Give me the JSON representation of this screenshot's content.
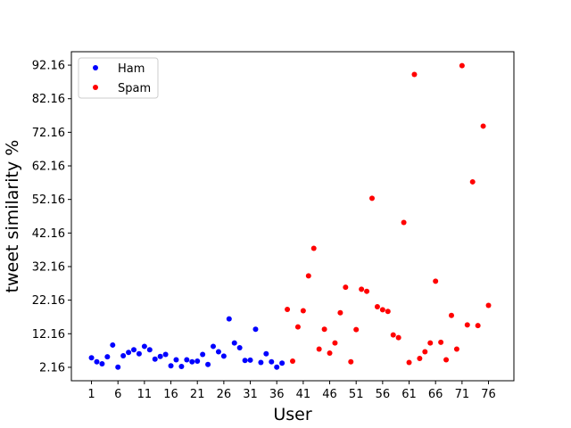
{
  "chart_data": {
    "type": "scatter",
    "title": "",
    "xlabel": "User",
    "ylabel": "tweet similarity %",
    "xlim": [
      -2.8,
      80.8
    ],
    "ylim": [
      -1.84,
      96.16
    ],
    "xticks": [
      1,
      6,
      11,
      16,
      21,
      26,
      31,
      36,
      41,
      46,
      51,
      56,
      61,
      66,
      71,
      76
    ],
    "yticks": [
      2.16,
      12.16,
      22.16,
      32.16,
      42.16,
      52.16,
      62.16,
      72.16,
      82.16,
      92.16
    ],
    "ytick_labels": [
      "2.16",
      "12.16",
      "22.16",
      "32.16",
      "42.16",
      "52.16",
      "62.16",
      "72.16",
      "82.16",
      "92.16"
    ],
    "grid": false,
    "legend": "top-left",
    "series": [
      {
        "name": "Ham",
        "color": "#0000ff",
        "points": [
          [
            1,
            5.0
          ],
          [
            2,
            3.8
          ],
          [
            3,
            3.2
          ],
          [
            4,
            5.3
          ],
          [
            5,
            8.8
          ],
          [
            6,
            2.2
          ],
          [
            7,
            5.6
          ],
          [
            8,
            6.6
          ],
          [
            9,
            7.4
          ],
          [
            10,
            6.2
          ],
          [
            11,
            8.4
          ],
          [
            12,
            7.4
          ],
          [
            13,
            4.6
          ],
          [
            14,
            5.4
          ],
          [
            15,
            6.0
          ],
          [
            16,
            2.6
          ],
          [
            17,
            4.4
          ],
          [
            18,
            2.4
          ],
          [
            19,
            4.4
          ],
          [
            20,
            3.8
          ],
          [
            21,
            4.0
          ],
          [
            22,
            6.0
          ],
          [
            23,
            3.0
          ],
          [
            24,
            8.4
          ],
          [
            25,
            6.8
          ],
          [
            26,
            5.5
          ],
          [
            27,
            16.6
          ],
          [
            28,
            9.4
          ],
          [
            29,
            8.0
          ],
          [
            30,
            4.2
          ],
          [
            31,
            4.3
          ],
          [
            32,
            13.5
          ],
          [
            33,
            3.6
          ],
          [
            34,
            6.2
          ],
          [
            35,
            3.8
          ],
          [
            36,
            2.2
          ],
          [
            37,
            3.4
          ]
        ]
      },
      {
        "name": "Spam",
        "color": "#ff0000",
        "points": [
          [
            38,
            19.4
          ],
          [
            39,
            4.0
          ],
          [
            40,
            14.2
          ],
          [
            41,
            19.0
          ],
          [
            42,
            29.4
          ],
          [
            43,
            37.6
          ],
          [
            44,
            7.6
          ],
          [
            45,
            13.5
          ],
          [
            46,
            6.4
          ],
          [
            47,
            9.4
          ],
          [
            48,
            18.4
          ],
          [
            49,
            26.0
          ],
          [
            50,
            3.8
          ],
          [
            51,
            13.4
          ],
          [
            52,
            25.4
          ],
          [
            53,
            24.8
          ],
          [
            54,
            52.5
          ],
          [
            55,
            20.2
          ],
          [
            56,
            19.3
          ],
          [
            57,
            18.8
          ],
          [
            58,
            11.8
          ],
          [
            59,
            11.0
          ],
          [
            60,
            45.3
          ],
          [
            61,
            3.6
          ],
          [
            62,
            89.4
          ],
          [
            63,
            4.8
          ],
          [
            64,
            6.8
          ],
          [
            65,
            9.4
          ],
          [
            66,
            27.8
          ],
          [
            67,
            9.6
          ],
          [
            68,
            4.4
          ],
          [
            69,
            17.6
          ],
          [
            70,
            7.6
          ],
          [
            71,
            92.0
          ],
          [
            72,
            14.8
          ],
          [
            73,
            57.4
          ],
          [
            74,
            14.6
          ],
          [
            75,
            74.0
          ],
          [
            76,
            20.6
          ]
        ]
      }
    ]
  }
}
